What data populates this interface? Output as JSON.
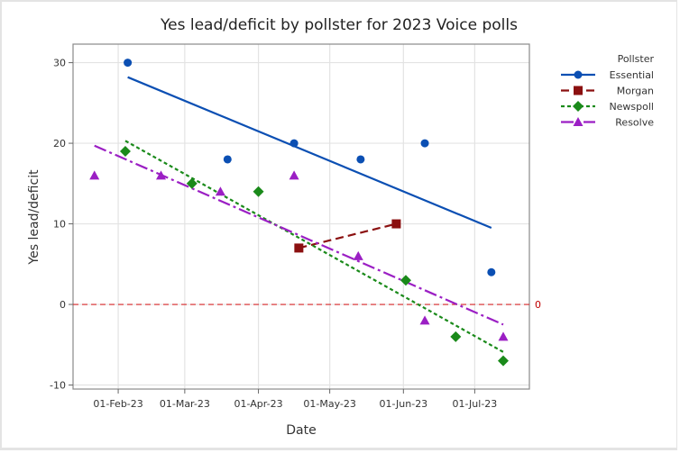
{
  "chart_data": {
    "type": "scatter",
    "title": "Yes lead/deficit by pollster for 2023 Voice polls",
    "xlabel": "Date",
    "ylabel": "Yes lead/deficit",
    "x_ticks": [
      {
        "date": "2023-02-01",
        "label": "01-Feb-23"
      },
      {
        "date": "2023-03-01",
        "label": "01-Mar-23"
      },
      {
        "date": "2023-04-01",
        "label": "01-Apr-23"
      },
      {
        "date": "2023-05-01",
        "label": "01-May-23"
      },
      {
        "date": "2023-06-01",
        "label": "01-Jun-23"
      },
      {
        "date": "2023-07-01",
        "label": "01-Jul-23"
      }
    ],
    "xlim": [
      "2023-01-13",
      "2023-07-24"
    ],
    "y_ticks": [
      -10,
      0,
      10,
      20,
      30
    ],
    "ylim": [
      -10.5,
      32.3
    ],
    "grid": true,
    "legend_title": "Pollster",
    "legend_position": "right",
    "reference_line": {
      "y": 0,
      "label": "0",
      "color": "#d62728"
    },
    "series": [
      {
        "name": "Essential",
        "color": "#0b4fb3",
        "marker": "circle",
        "line_style": "solid",
        "points": [
          {
            "x": "2023-02-05",
            "y": 30
          },
          {
            "x": "2023-03-19",
            "y": 18
          },
          {
            "x": "2023-04-16",
            "y": 20
          },
          {
            "x": "2023-05-14",
            "y": 18
          },
          {
            "x": "2023-06-10",
            "y": 20
          },
          {
            "x": "2023-07-08",
            "y": 4
          }
        ],
        "fit": {
          "x": [
            "2023-02-05",
            "2023-07-08"
          ],
          "y": [
            28.2,
            9.5
          ]
        }
      },
      {
        "name": "Morgan",
        "color": "#8b1010",
        "marker": "square",
        "line_style": "dashed",
        "points": [
          {
            "x": "2023-04-18",
            "y": 7
          },
          {
            "x": "2023-05-29",
            "y": 10
          }
        ],
        "fit": {
          "x": [
            "2023-04-18",
            "2023-05-29"
          ],
          "y": [
            7,
            10
          ]
        }
      },
      {
        "name": "Newspoll",
        "color": "#1a8a1a",
        "marker": "diamond",
        "line_style": "dotted",
        "points": [
          {
            "x": "2023-02-04",
            "y": 19
          },
          {
            "x": "2023-03-04",
            "y": 15
          },
          {
            "x": "2023-04-01",
            "y": 14
          },
          {
            "x": "2023-06-02",
            "y": 3
          },
          {
            "x": "2023-06-23",
            "y": -4
          },
          {
            "x": "2023-07-13",
            "y": -7
          }
        ],
        "fit": {
          "x": [
            "2023-02-04",
            "2023-07-13"
          ],
          "y": [
            20.3,
            -5.9
          ]
        }
      },
      {
        "name": "Resolve",
        "color": "#9b1fc4",
        "marker": "triangle",
        "line_style": "dashdot",
        "points": [
          {
            "x": "2023-01-22",
            "y": 16
          },
          {
            "x": "2023-02-19",
            "y": 16
          },
          {
            "x": "2023-03-16",
            "y": 14
          },
          {
            "x": "2023-04-16",
            "y": 16
          },
          {
            "x": "2023-05-13",
            "y": 6
          },
          {
            "x": "2023-06-10",
            "y": -2
          },
          {
            "x": "2023-07-13",
            "y": -4
          }
        ],
        "fit": {
          "x": [
            "2023-01-22",
            "2023-07-13"
          ],
          "y": [
            19.7,
            -2.5
          ]
        }
      }
    ]
  }
}
